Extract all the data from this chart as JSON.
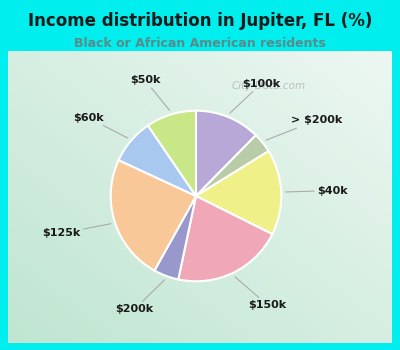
{
  "title": "Income distribution in Jupiter, FL (%)",
  "subtitle": "Black or African American residents",
  "title_color": "#1a1a1a",
  "subtitle_color": "#5a8a8a",
  "background_outer": "#00EEEE",
  "watermark": "City-Data.com",
  "labels": [
    "$100k",
    "> $200k",
    "$40k",
    "$150k",
    "$200k",
    "$125k",
    "$60k",
    "$50k"
  ],
  "values": [
    13,
    4,
    17,
    22,
    5,
    25,
    9,
    10
  ],
  "colors": [
    "#b8a8d8",
    "#b8cca8",
    "#f0f088",
    "#f0a8b8",
    "#9898cc",
    "#f8c898",
    "#a8c8f0",
    "#c8e888"
  ],
  "startangle": 90,
  "figsize": [
    4.0,
    3.5
  ],
  "dpi": 100,
  "inner_bg_top": "#f0faf8",
  "inner_bg_bottom": "#c8e8d0"
}
